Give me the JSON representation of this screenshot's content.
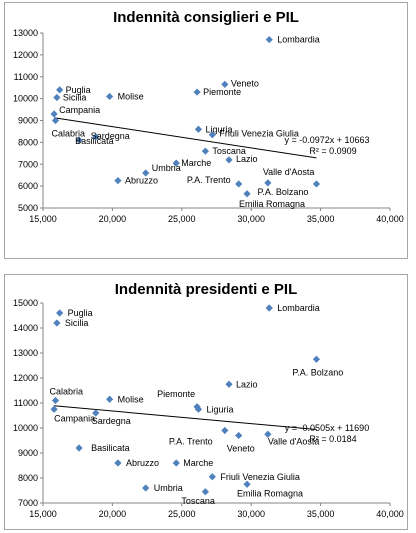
{
  "chart_data": [
    {
      "type": "scatter",
      "title": "Indennità consiglieri e PIL",
      "xlim": [
        15000,
        40000
      ],
      "ylim": [
        5000,
        13000
      ],
      "xticks": [
        "15,000",
        "20,000",
        "25,000",
        "30,000",
        "35,000",
        "40,000"
      ],
      "yticks": [
        "5000",
        "6000",
        "7000",
        "8000",
        "9000",
        "10000",
        "11000",
        "12000",
        "13000"
      ],
      "marker_color": "#4f81bd",
      "points": [
        {
          "label": "Lombardia",
          "x": 31300,
          "y": 12700
        },
        {
          "label": "Veneto",
          "x": 28100,
          "y": 10650
        },
        {
          "label": "Piemonte",
          "x": 26100,
          "y": 10300
        },
        {
          "label": "Puglia",
          "x": 16200,
          "y": 10400
        },
        {
          "label": "Sicilia",
          "x": 16000,
          "y": 10050
        },
        {
          "label": "Molise",
          "x": 19800,
          "y": 10100
        },
        {
          "label": "Campania",
          "x": 15800,
          "y": 9300
        },
        {
          "label": "Calabria",
          "x": 15900,
          "y": 9000
        },
        {
          "label": "Basilicata",
          "x": 17600,
          "y": 8100
        },
        {
          "label": "Sardegna",
          "x": 18800,
          "y": 8250
        },
        {
          "label": "Liguria",
          "x": 26200,
          "y": 8600
        },
        {
          "label": "Friuli Venezia Giulia",
          "x": 27200,
          "y": 8350
        },
        {
          "label": "Toscana",
          "x": 26700,
          "y": 7600
        },
        {
          "label": "Lazio",
          "x": 28400,
          "y": 7200
        },
        {
          "label": "Marche",
          "x": 24600,
          "y": 7050
        },
        {
          "label": "Umbria",
          "x": 22400,
          "y": 6600
        },
        {
          "label": "Abruzzo",
          "x": 20400,
          "y": 6250
        },
        {
          "label": "P.A. Trento",
          "x": 29100,
          "y": 6100
        },
        {
          "label": "Valle d'Aosta",
          "x": 31200,
          "y": 6150
        },
        {
          "label": "P.A. Bolzano",
          "x": 34700,
          "y": 6100
        },
        {
          "label": "Emilia Romagna",
          "x": 29700,
          "y": 5650
        }
      ],
      "trendline": {
        "slope": -0.0972,
        "intercept": 10663,
        "x_range": [
          15800,
          34700
        ]
      },
      "equation": "y = -0.0972x + 10663",
      "r2": "R² = 0.0909"
    },
    {
      "type": "scatter",
      "title": "Indennità presidenti e PIL",
      "xlim": [
        15000,
        40000
      ],
      "ylim": [
        7000,
        15000
      ],
      "xticks": [
        "15,000",
        "20,000",
        "25,000",
        "30,000",
        "35,000",
        "40,000"
      ],
      "yticks": [
        "7000",
        "8000",
        "9000",
        "10000",
        "11000",
        "12000",
        "13000",
        "14000",
        "15000"
      ],
      "marker_color": "#4f81bd",
      "points": [
        {
          "label": "Lombardia",
          "x": 31300,
          "y": 14800
        },
        {
          "label": "Puglia",
          "x": 16200,
          "y": 14600
        },
        {
          "label": "Sicilia",
          "x": 16000,
          "y": 14200
        },
        {
          "label": "P.A. Bolzano",
          "x": 34700,
          "y": 12750
        },
        {
          "label": "Lazio",
          "x": 28400,
          "y": 11750
        },
        {
          "label": "Calabria",
          "x": 15900,
          "y": 11100
        },
        {
          "label": "Molise",
          "x": 19800,
          "y": 11150
        },
        {
          "label": "Piemonte",
          "x": 26100,
          "y": 10850
        },
        {
          "label": "Liguria",
          "x": 26200,
          "y": 10750
        },
        {
          "label": "Campania",
          "x": 15800,
          "y": 10750
        },
        {
          "label": "Sardegna",
          "x": 18800,
          "y": 10600
        },
        {
          "label": "P.A. Trento",
          "x": 28100,
          "y": 9900
        },
        {
          "label": "Veneto",
          "x": 29100,
          "y": 9700
        },
        {
          "label": "Valle d'Aosta",
          "x": 31200,
          "y": 9750
        },
        {
          "label": "Basilicata",
          "x": 17600,
          "y": 9200
        },
        {
          "label": "Abruzzo",
          "x": 20400,
          "y": 8600
        },
        {
          "label": "Marche",
          "x": 24600,
          "y": 8600
        },
        {
          "label": "Friuli Venezia Giulia",
          "x": 27200,
          "y": 8050
        },
        {
          "label": "Umbria",
          "x": 22400,
          "y": 7600
        },
        {
          "label": "Toscana",
          "x": 26700,
          "y": 7450
        },
        {
          "label": "Emilia Romagna",
          "x": 29700,
          "y": 7750
        }
      ],
      "trendline": {
        "slope": -0.0505,
        "intercept": 11690,
        "x_range": [
          15800,
          34700
        ]
      },
      "equation": "y = -0.0505x + 11690",
      "r2": "R² = 0.0184"
    }
  ]
}
